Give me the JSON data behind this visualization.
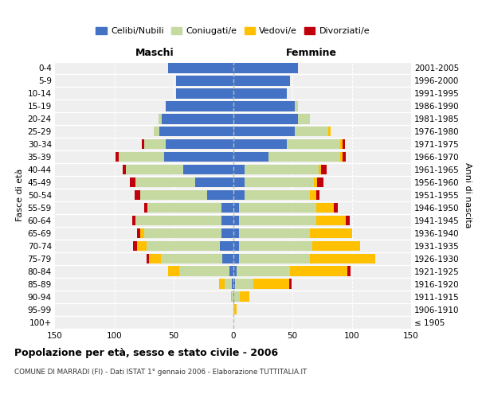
{
  "age_groups": [
    "100+",
    "95-99",
    "90-94",
    "85-89",
    "80-84",
    "75-79",
    "70-74",
    "65-69",
    "60-64",
    "55-59",
    "50-54",
    "45-49",
    "40-44",
    "35-39",
    "30-34",
    "25-29",
    "20-24",
    "15-19",
    "10-14",
    "5-9",
    "0-4"
  ],
  "birth_years": [
    "≤ 1905",
    "1906-1910",
    "1911-1915",
    "1916-1920",
    "1921-1925",
    "1926-1930",
    "1931-1935",
    "1936-1940",
    "1941-1945",
    "1946-1950",
    "1951-1955",
    "1956-1960",
    "1961-1965",
    "1966-1970",
    "1971-1975",
    "1976-1980",
    "1981-1985",
    "1986-1990",
    "1991-1995",
    "1996-2000",
    "2001-2005"
  ],
  "males": {
    "celibi": [
      0,
      0,
      0,
      1,
      3,
      9,
      11,
      10,
      10,
      10,
      22,
      32,
      42,
      58,
      57,
      62,
      60,
      57,
      48,
      48,
      55
    ],
    "coniugati": [
      0,
      0,
      1,
      6,
      42,
      52,
      62,
      65,
      72,
      62,
      56,
      50,
      48,
      38,
      18,
      5,
      3,
      0,
      0,
      0,
      0
    ],
    "vedovi": [
      0,
      0,
      1,
      5,
      10,
      10,
      8,
      3,
      0,
      0,
      0,
      0,
      0,
      0,
      0,
      0,
      0,
      0,
      0,
      0,
      0
    ],
    "divorziati": [
      0,
      0,
      0,
      0,
      0,
      2,
      3,
      3,
      3,
      3,
      5,
      5,
      3,
      3,
      2,
      0,
      0,
      0,
      0,
      0,
      0
    ]
  },
  "females": {
    "nubili": [
      0,
      0,
      1,
      2,
      3,
      5,
      5,
      5,
      5,
      5,
      10,
      10,
      10,
      30,
      45,
      52,
      55,
      52,
      45,
      48,
      55
    ],
    "coniugate": [
      0,
      1,
      5,
      15,
      45,
      60,
      62,
      60,
      65,
      65,
      55,
      58,
      62,
      60,
      45,
      28,
      10,
      3,
      0,
      0,
      0
    ],
    "vedove": [
      0,
      2,
      8,
      30,
      48,
      55,
      40,
      35,
      25,
      15,
      5,
      3,
      2,
      2,
      2,
      2,
      0,
      0,
      0,
      0,
      0
    ],
    "divorziate": [
      0,
      0,
      0,
      2,
      3,
      0,
      0,
      0,
      3,
      3,
      3,
      5,
      5,
      3,
      2,
      0,
      0,
      0,
      0,
      0,
      0
    ]
  },
  "colors": {
    "celibi": "#4472c4",
    "coniugati": "#c5d9a0",
    "vedovi": "#ffc000",
    "divorziati": "#c0000b"
  },
  "title": "Popolazione per età, sesso e stato civile - 2006",
  "subtitle": "COMUNE DI MARRADI (FI) - Dati ISTAT 1° gennaio 2006 - Elaborazione TUTTITALIA.IT",
  "label_maschi": "Maschi",
  "label_femmine": "Femmine",
  "ylabel_left": "Fasce di età",
  "ylabel_right": "Anni di nascita",
  "xlim": 150,
  "legend_labels": [
    "Celibi/Nubili",
    "Coniugati/e",
    "Vedovi/e",
    "Divorziati/e"
  ],
  "bg_color": "#ffffff",
  "plot_bg_color": "#efefef"
}
